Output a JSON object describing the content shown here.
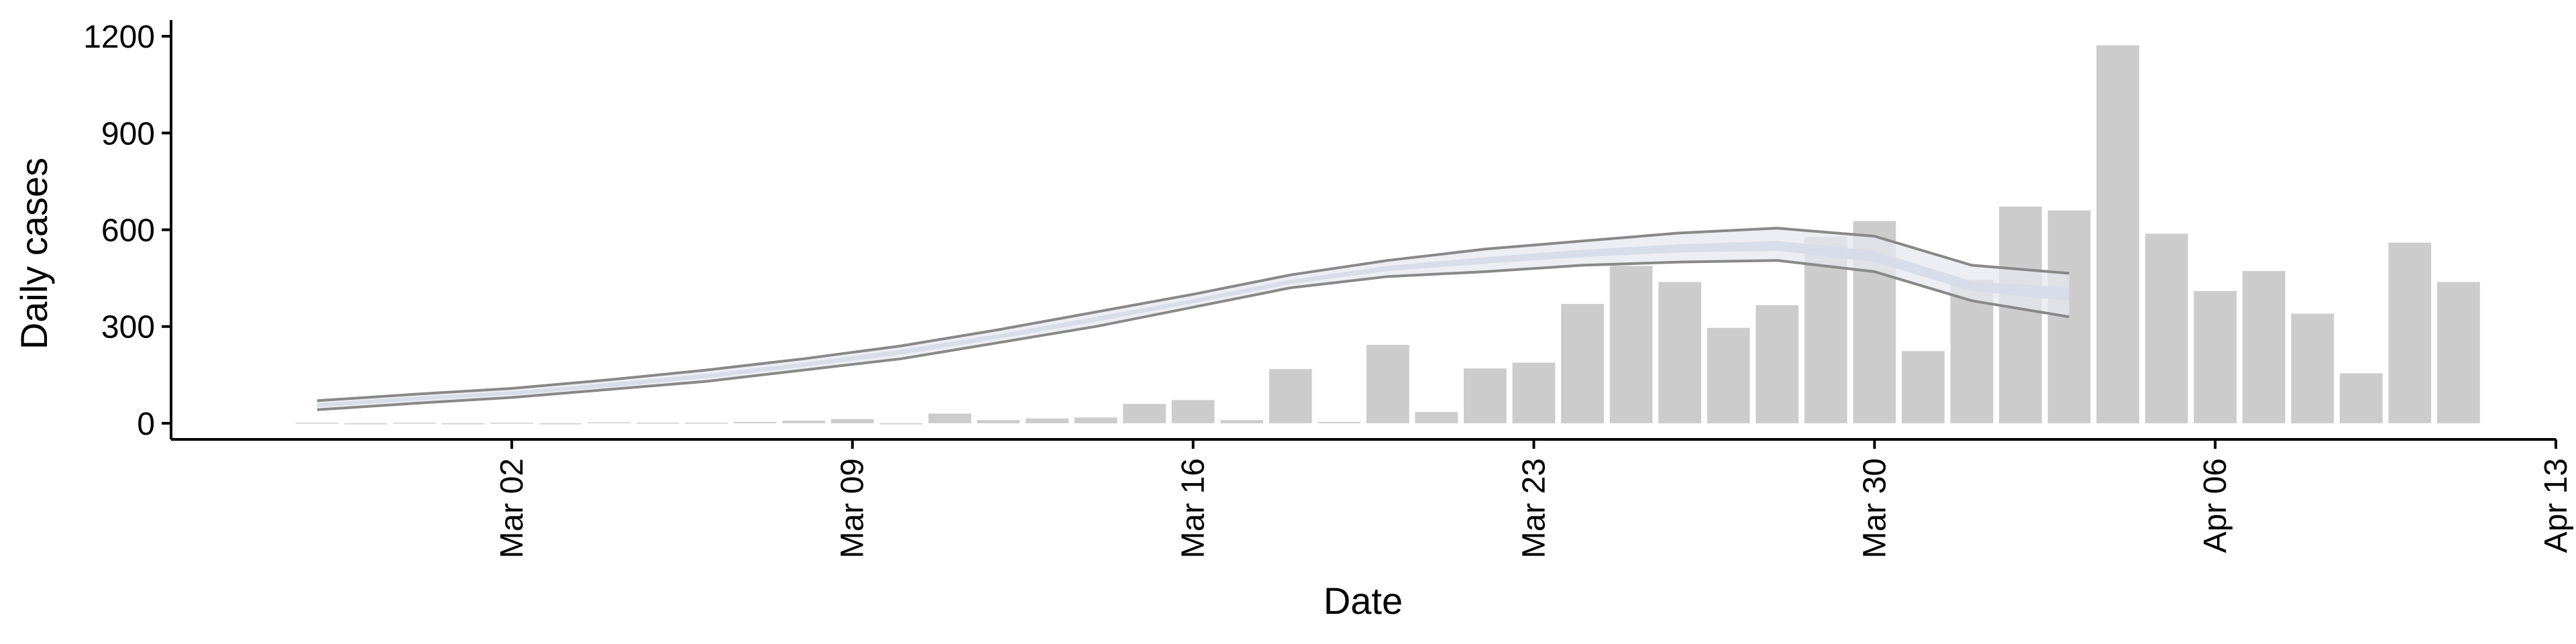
{
  "chart_data": {
    "type": "bar",
    "xlabel": "Date",
    "ylabel": "Daily cases",
    "ylim": [
      -50,
      1250
    ],
    "xlim": [
      "2020-02-24",
      "2020-04-13"
    ],
    "y_ticks": [
      0,
      300,
      600,
      900,
      1200
    ],
    "x_ticks": [
      {
        "date": "2020-03-02",
        "label": "Mar 02"
      },
      {
        "date": "2020-03-09",
        "label": "Mar 09"
      },
      {
        "date": "2020-03-16",
        "label": "Mar 16"
      },
      {
        "date": "2020-03-23",
        "label": "Mar 23"
      },
      {
        "date": "2020-03-30",
        "label": "Mar 30"
      },
      {
        "date": "2020-04-06",
        "label": "Apr 06"
      },
      {
        "date": "2020-04-13",
        "label": "Apr 13"
      }
    ],
    "grid": false,
    "bars": {
      "color": "#cccccc",
      "dates": [
        "2020-02-27",
        "2020-02-28",
        "2020-02-29",
        "2020-03-01",
        "2020-03-02",
        "2020-03-03",
        "2020-03-04",
        "2020-03-05",
        "2020-03-06",
        "2020-03-07",
        "2020-03-08",
        "2020-03-09",
        "2020-03-10",
        "2020-03-11",
        "2020-03-12",
        "2020-03-13",
        "2020-03-14",
        "2020-03-15",
        "2020-03-16",
        "2020-03-17",
        "2020-03-18",
        "2020-03-19",
        "2020-03-20",
        "2020-03-21",
        "2020-03-22",
        "2020-03-23",
        "2020-03-24",
        "2020-03-25",
        "2020-03-26",
        "2020-03-27",
        "2020-03-28",
        "2020-03-29",
        "2020-03-30",
        "2020-03-31",
        "2020-04-01",
        "2020-04-02",
        "2020-04-03",
        "2020-04-04",
        "2020-04-05",
        "2020-04-06",
        "2020-04-07",
        "2020-04-08",
        "2020-04-09",
        "2020-04-10",
        "2020-04-11"
      ],
      "values": [
        2,
        0,
        2,
        0,
        2,
        0,
        3,
        2,
        2,
        4,
        8,
        13,
        0,
        30,
        10,
        15,
        18,
        60,
        72,
        10,
        168,
        4,
        243,
        35,
        170,
        188,
        370,
        488,
        438,
        296,
        366,
        578,
        627,
        224,
        445,
        672,
        660,
        1172,
        588,
        410,
        472,
        340,
        155,
        560,
        438
      ]
    },
    "band_outer": {
      "color": "#888888",
      "dates": [
        "2020-02-27",
        "2020-02-29",
        "2020-03-02",
        "2020-03-04",
        "2020-03-06",
        "2020-03-08",
        "2020-03-10",
        "2020-03-12",
        "2020-03-14",
        "2020-03-16",
        "2020-03-18",
        "2020-03-20",
        "2020-03-22",
        "2020-03-24",
        "2020-03-26",
        "2020-03-28",
        "2020-03-30",
        "2020-04-01",
        "2020-04-03"
      ],
      "upper": [
        70,
        90,
        108,
        135,
        165,
        200,
        240,
        290,
        345,
        400,
        460,
        505,
        540,
        565,
        590,
        605,
        580,
        490,
        465
      ],
      "lower": [
        42,
        62,
        80,
        105,
        130,
        165,
        200,
        250,
        300,
        360,
        420,
        455,
        470,
        490,
        500,
        505,
        470,
        380,
        330
      ]
    },
    "band_inner": {
      "color": "#d6dbe8",
      "dates": [
        "2020-02-27",
        "2020-02-29",
        "2020-03-02",
        "2020-03-04",
        "2020-03-06",
        "2020-03-08",
        "2020-03-10",
        "2020-03-12",
        "2020-03-14",
        "2020-03-16",
        "2020-03-18",
        "2020-03-20",
        "2020-03-22",
        "2020-03-24",
        "2020-03-26",
        "2020-03-28",
        "2020-03-30",
        "2020-04-01",
        "2020-04-03"
      ],
      "upper": [
        62,
        82,
        99,
        125,
        153,
        188,
        228,
        276,
        330,
        385,
        445,
        488,
        515,
        538,
        555,
        565,
        535,
        440,
        420
      ],
      "lower": [
        50,
        70,
        88,
        112,
        140,
        175,
        213,
        262,
        315,
        372,
        432,
        472,
        495,
        515,
        530,
        535,
        500,
        410,
        380
      ]
    }
  }
}
